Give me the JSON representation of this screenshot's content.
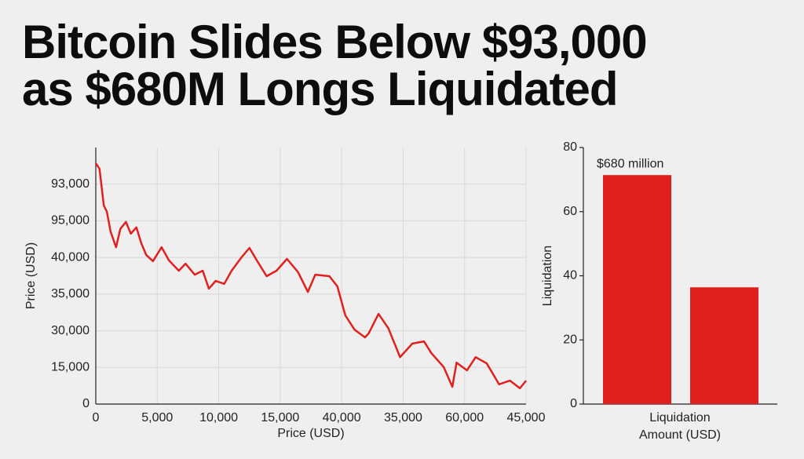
{
  "title": [
    "Bitcoin Slides Below $93,000",
    "as $680M Longs Liquidated"
  ],
  "chart_data": [
    {
      "type": "line",
      "xlabel": "Price (USD)",
      "ylabel": "Price (USD)",
      "color": "#e0201e",
      "grid": true,
      "xlim": [
        0,
        7
      ],
      "ylim": [
        0,
        7
      ],
      "xticks": [
        {
          "value": 0,
          "label": "0"
        },
        {
          "value": 1,
          "label": "5,000"
        },
        {
          "value": 2,
          "label": "10,000"
        },
        {
          "value": 3,
          "label": "15,000"
        },
        {
          "value": 4,
          "label": "40,000"
        },
        {
          "value": 5,
          "label": "35,000"
        },
        {
          "value": 6,
          "label": "60,000"
        },
        {
          "value": 7,
          "label": "45,000"
        }
      ],
      "yticks": [
        {
          "value": 0,
          "label": "0"
        },
        {
          "value": 1,
          "label": "15,000"
        },
        {
          "value": 2,
          "label": "30,000"
        },
        {
          "value": 3,
          "label": "35,000"
        },
        {
          "value": 4,
          "label": "40,000"
        },
        {
          "value": 5,
          "label": "95,000"
        },
        {
          "value": 6,
          "label": "93,000"
        }
      ],
      "x": [
        0,
        0.06,
        0.13,
        0.18,
        0.24,
        0.33,
        0.4,
        0.49,
        0.57,
        0.66,
        0.74,
        0.82,
        0.93,
        1.07,
        1.19,
        1.35,
        1.46,
        1.61,
        1.74,
        1.84,
        1.95,
        2.09,
        2.21,
        2.37,
        2.5,
        2.62,
        2.78,
        2.94,
        3.11,
        3.29,
        3.45,
        3.57,
        3.8,
        3.93,
        4.06,
        4.21,
        4.38,
        4.44,
        4.6,
        4.76,
        4.95,
        5.15,
        5.34,
        5.46,
        5.66,
        5.8,
        5.87,
        6.04,
        6.18,
        6.36,
        6.56,
        6.74,
        6.9,
        7.0
      ],
      "values": [
        6.57,
        6.42,
        5.42,
        5.25,
        4.71,
        4.28,
        4.78,
        4.97,
        4.65,
        4.82,
        4.39,
        4.07,
        3.9,
        4.28,
        3.92,
        3.64,
        3.83,
        3.53,
        3.64,
        3.15,
        3.36,
        3.28,
        3.64,
        4.0,
        4.26,
        3.92,
        3.49,
        3.64,
        3.96,
        3.6,
        3.06,
        3.53,
        3.49,
        3.21,
        2.42,
        2.03,
        1.82,
        1.93,
        2.46,
        2.07,
        1.28,
        1.65,
        1.71,
        1.39,
        1.01,
        0.47,
        1.13,
        0.92,
        1.28,
        1.11,
        0.54,
        0.64,
        0.43,
        0.64
      ]
    },
    {
      "type": "bar",
      "xlabel": [
        "Liquidation",
        "Amount (USD)"
      ],
      "ylabel": "Liquidation",
      "color": "#e0201e",
      "grid": false,
      "ylim": [
        0,
        80
      ],
      "yticks": [
        0,
        20,
        40,
        60,
        80
      ],
      "categories": [
        null,
        null
      ],
      "values": [
        71.4,
        36.4
      ],
      "annotations": [
        "$680 million"
      ]
    }
  ]
}
